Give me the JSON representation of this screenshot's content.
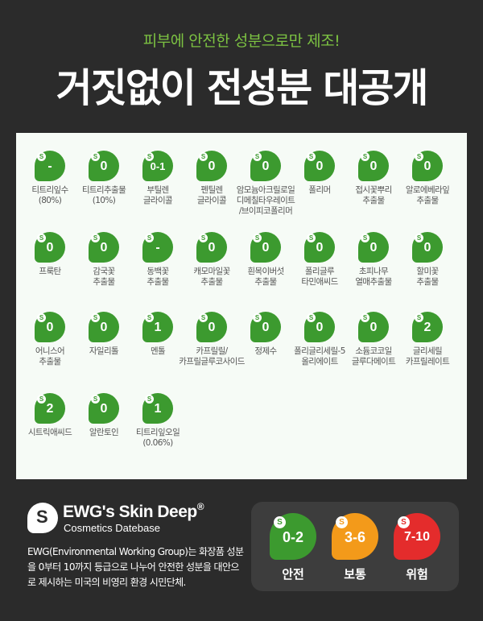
{
  "header": {
    "subtitle": "피부에 안전한 성분으로만 제조!",
    "title": "거짓없이 전성분 대공개"
  },
  "ingredients": [
    {
      "score": "-",
      "name": "티트리잎수\n(80%)"
    },
    {
      "score": "0",
      "name": "티트리추출물\n(10%)"
    },
    {
      "score": "0-1",
      "name": "부틸렌\n글라이콜"
    },
    {
      "score": "0",
      "name": "펜틸렌\n글라이콜"
    },
    {
      "score": "0",
      "name": "암모늄아크릴로일\n디메칠타우레이트\n/브이피코폴리머"
    },
    {
      "score": "0",
      "name": "폴리머"
    },
    {
      "score": "0",
      "name": "접시꽃뿌리\n추출물"
    },
    {
      "score": "0",
      "name": "알로에베라잎\n추출물"
    },
    {
      "score": "0",
      "name": "프룩탄"
    },
    {
      "score": "0",
      "name": "감국꽃\n추출물"
    },
    {
      "score": "-",
      "name": "동백꽃\n추출물"
    },
    {
      "score": "0",
      "name": "캐모마일꽃\n추출물"
    },
    {
      "score": "0",
      "name": "흰목이버섯\n추출물"
    },
    {
      "score": "0",
      "name": "폴리글루\n타민애씨드"
    },
    {
      "score": "0",
      "name": "초피나무\n열매추출물"
    },
    {
      "score": "0",
      "name": "할미꽃\n추출물"
    },
    {
      "score": "0",
      "name": "어니스어\n추출물"
    },
    {
      "score": "0",
      "name": "자일리톨"
    },
    {
      "score": "1",
      "name": "멘톨"
    },
    {
      "score": "0",
      "name": "카프릴릴/\n카프릴글루코사이드"
    },
    {
      "score": "0",
      "name": "정제수"
    },
    {
      "score": "0",
      "name": "폴리글리세릴-5\n올리에이트"
    },
    {
      "score": "0",
      "name": "소듐코코일\n글루다메이트"
    },
    {
      "score": "2",
      "name": "글리세릴\n카프릴레이트"
    },
    {
      "score": "2",
      "name": "시트릭애씨드"
    },
    {
      "score": "0",
      "name": "알란토인"
    },
    {
      "score": "1",
      "name": "티트리잎오일\n(0.06%)"
    }
  ],
  "ewg": {
    "logo_letter": "S",
    "title": "EWG's Skin Deep",
    "registered": "®",
    "subtitle": "Cosmetics Datebase",
    "description": "EWG(Environmental Working Group)는 화장품 성분을 0부터 10까지 등급으로 나누어 안전한 성분을 대안으로 제시하는 미국의 비영리 환경 시민단체."
  },
  "legend": [
    {
      "range": "0-2",
      "label": "안전",
      "color": "#3c9a2f"
    },
    {
      "range": "3-6",
      "label": "보통",
      "color": "#f39a1a"
    },
    {
      "range": "7-10",
      "label": "위험",
      "color": "#e42c2c"
    }
  ],
  "colors": {
    "accent": "#7cc242",
    "badge_green": "#3c9a2f",
    "background": "#2b2b2b",
    "panel": "#f6fbf6"
  }
}
